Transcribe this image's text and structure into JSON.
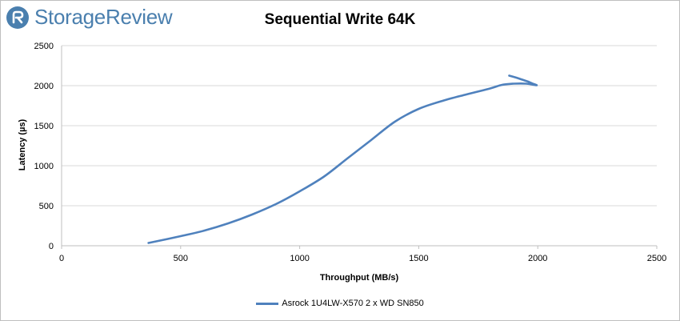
{
  "logo": {
    "text": "StorageReview",
    "icon": "storagereview-logo-icon"
  },
  "colors": {
    "series": "#4f81bd",
    "grid": "#d9d9d9",
    "logo": "#4a7fae"
  },
  "chart_data": {
    "type": "line",
    "title": "Sequential Write 64K",
    "xlabel": "Throughput (MB/s)",
    "ylabel": "Latency (µs)",
    "xlim": [
      0,
      2500
    ],
    "ylim": [
      0,
      2500
    ],
    "xticks": [
      0,
      500,
      1000,
      1500,
      2000,
      2500
    ],
    "yticks": [
      0,
      500,
      1000,
      1500,
      2000,
      2500
    ],
    "grid": "horizontal",
    "legend": "bottom",
    "series": [
      {
        "name": "Asrock 1U4LW-X570 2 x WD SN850",
        "x": [
          365,
          500,
          600,
          700,
          800,
          900,
          1000,
          1100,
          1200,
          1300,
          1400,
          1500,
          1600,
          1700,
          1800,
          1850,
          1900,
          1950,
          1995,
          1975,
          1960,
          1935,
          1910,
          1880
        ],
        "y": [
          35,
          120,
          190,
          280,
          390,
          520,
          680,
          860,
          1090,
          1320,
          1550,
          1710,
          1810,
          1890,
          1965,
          2010,
          2025,
          2025,
          2005,
          2030,
          2050,
          2075,
          2100,
          2125
        ]
      }
    ]
  }
}
